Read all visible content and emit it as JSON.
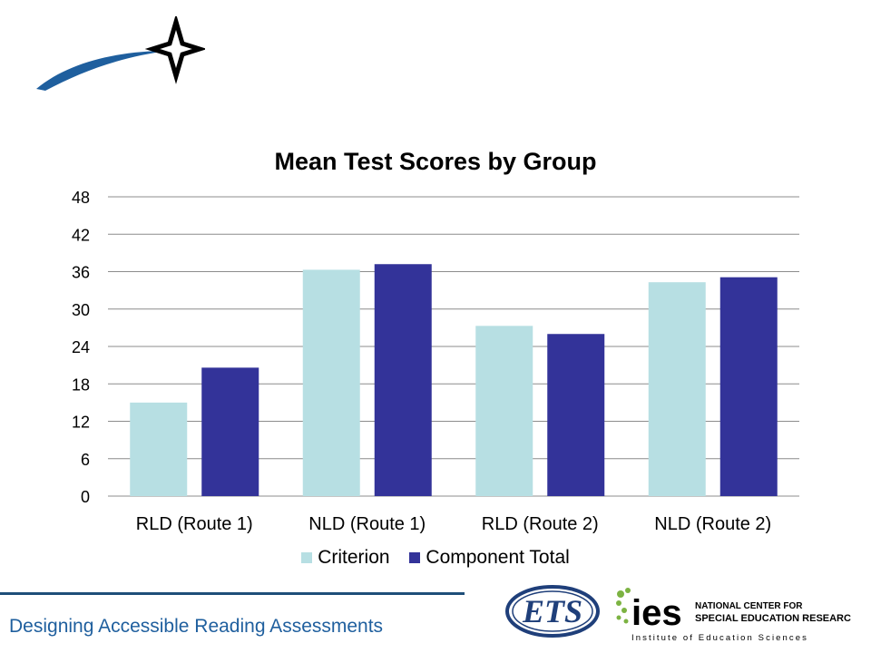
{
  "chart_data": {
    "type": "bar",
    "title": "Mean Test Scores by Group",
    "categories": [
      "RLD (Route 1)",
      "NLD (Route 1)",
      "RLD (Route 2)",
      "NLD (Route 2)"
    ],
    "series": [
      {
        "name": "Criterion",
        "color": "#b7dfe3",
        "values": [
          15,
          36.3,
          27.3,
          34.3
        ]
      },
      {
        "name": "Component Total",
        "color": "#333399",
        "values": [
          20.6,
          37.2,
          26,
          35.1
        ]
      }
    ],
    "ylim": [
      0,
      48
    ],
    "yticks": [
      0,
      6,
      12,
      18,
      24,
      30,
      36,
      42,
      48
    ],
    "grid": true,
    "legend_position": "bottom"
  },
  "footer": {
    "text": "Designing Accessible Reading Assessments"
  },
  "logos": {
    "ets": "ETS",
    "ies": "ies",
    "ies_line1": "NATIONAL CENTER FOR",
    "ies_line2": "SPECIAL EDUCATION RESEARCH",
    "ies_sub": "Institute of Education Sciences"
  },
  "icons": {
    "top_logo": "star-swoosh-logo"
  }
}
